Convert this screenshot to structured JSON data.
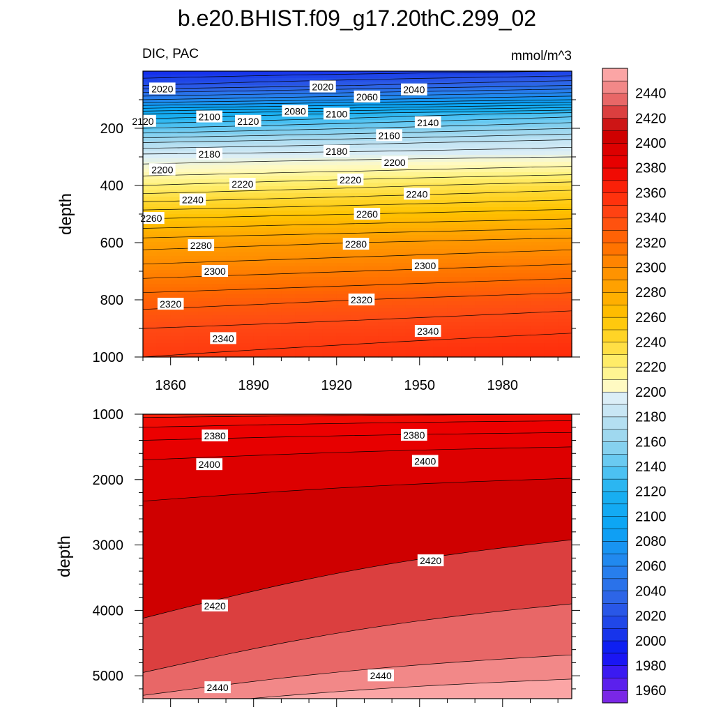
{
  "title": "b.e20.BHIST.f09_g17.20thC.299_02",
  "left_string": "DIC, PAC",
  "right_string": "mmol/m^3",
  "chart_data": [
    {
      "type": "heatmap",
      "panel": "upper",
      "title": "b.e20.BHIST.f09_g17.20thC.299_02",
      "left_string": "DIC, PAC",
      "units": "mmol/m^3",
      "xlabel": "",
      "ylabel": "depth",
      "xlim": [
        1850,
        2005
      ],
      "ylim": [
        1000,
        0
      ],
      "x_ticks": [
        1860,
        1890,
        1920,
        1950,
        1980
      ],
      "y_ticks": [
        200,
        400,
        600,
        800,
        1000
      ],
      "depth_profile": {
        "depth": [
          0,
          50,
          100,
          150,
          200,
          250,
          300,
          350,
          400,
          500,
          600,
          700,
          800,
          900,
          1000
        ],
        "dic_1850": [
          2000,
          2020,
          2060,
          2110,
          2140,
          2170,
          2195,
          2205,
          2220,
          2255,
          2285,
          2305,
          2325,
          2340,
          2350
        ],
        "dic_2005": [
          2010,
          2040,
          2080,
          2135,
          2160,
          2185,
          2200,
          2215,
          2235,
          2265,
          2295,
          2315,
          2335,
          2348,
          2360
        ]
      },
      "contour_labels": [
        {
          "value": "2020",
          "year": 1857,
          "depth": 62
        },
        {
          "value": "2020",
          "year": 1915,
          "depth": 55
        },
        {
          "value": "2060",
          "year": 1931,
          "depth": 90
        },
        {
          "value": "2040",
          "year": 1948,
          "depth": 65
        },
        {
          "value": "2120",
          "year": 1850,
          "depth": 175
        },
        {
          "value": "2100",
          "year": 1874,
          "depth": 160
        },
        {
          "value": "2120",
          "year": 1888,
          "depth": 175
        },
        {
          "value": "2080",
          "year": 1905,
          "depth": 140
        },
        {
          "value": "2100",
          "year": 1920,
          "depth": 150
        },
        {
          "value": "2140",
          "year": 1953,
          "depth": 180
        },
        {
          "value": "2160",
          "year": 1939,
          "depth": 225
        },
        {
          "value": "2180",
          "year": 1874,
          "depth": 290
        },
        {
          "value": "2180",
          "year": 1920,
          "depth": 280
        },
        {
          "value": "2200",
          "year": 1941,
          "depth": 320
        },
        {
          "value": "2200",
          "year": 1857,
          "depth": 345
        },
        {
          "value": "2220",
          "year": 1886,
          "depth": 395
        },
        {
          "value": "2220",
          "year": 1925,
          "depth": 380
        },
        {
          "value": "2240",
          "year": 1949,
          "depth": 430
        },
        {
          "value": "2240",
          "year": 1868,
          "depth": 450
        },
        {
          "value": "2260",
          "year": 1853,
          "depth": 515
        },
        {
          "value": "2260",
          "year": 1931,
          "depth": 500
        },
        {
          "value": "2280",
          "year": 1871,
          "depth": 610
        },
        {
          "value": "2280",
          "year": 1927,
          "depth": 605
        },
        {
          "value": "2300",
          "year": 1876,
          "depth": 700
        },
        {
          "value": "2300",
          "year": 1952,
          "depth": 680
        },
        {
          "value": "2320",
          "year": 1860,
          "depth": 815
        },
        {
          "value": "2320",
          "year": 1929,
          "depth": 800
        },
        {
          "value": "2340",
          "year": 1879,
          "depth": 935
        },
        {
          "value": "2340",
          "year": 1953,
          "depth": 910
        }
      ]
    },
    {
      "type": "heatmap",
      "panel": "lower",
      "xlabel": "",
      "ylabel": "depth",
      "xlim": [
        1850,
        2005
      ],
      "ylim": [
        5350,
        1000
      ],
      "y_ticks": [
        1000,
        2000,
        3000,
        4000,
        5000
      ],
      "contour_lines_depth": [
        {
          "value": 2370,
          "at_1850": 1050,
          "at_2005": 1000
        },
        {
          "value": 2375,
          "at_1850": 1200,
          "at_2005": 1100
        },
        {
          "value": 2380,
          "at_1850": 1400,
          "at_2005": 1280
        },
        {
          "value": 2390,
          "at_1850": 1700,
          "at_2005": 1500
        },
        {
          "value": 2400,
          "at_1850": 2330,
          "at_2005": 1980
        },
        {
          "value": 2420,
          "at_1850": 4120,
          "at_2005": 2920
        },
        {
          "value": 2430,
          "at_1850": 4950,
          "at_2005": 3900
        },
        {
          "value": 2440,
          "at_1850": 5300,
          "at_2005": 4680
        },
        {
          "value": 2450,
          "at_1850": 5500,
          "at_2005": 5050
        }
      ],
      "contour_labels": [
        {
          "value": "2380",
          "year": 1876,
          "depth": 1330
        },
        {
          "value": "2380",
          "year": 1948,
          "depth": 1320
        },
        {
          "value": "2400",
          "year": 1874,
          "depth": 1770
        },
        {
          "value": "2400",
          "year": 1952,
          "depth": 1720
        },
        {
          "value": "2420",
          "year": 1954,
          "depth": 3240
        },
        {
          "value": "2420",
          "year": 1876,
          "depth": 3930
        },
        {
          "value": "2440",
          "year": 1877,
          "depth": 5180
        },
        {
          "value": "2440",
          "year": 1936,
          "depth": 5000
        }
      ]
    }
  ],
  "colorbar": {
    "labels": [
      "1960",
      "1980",
      "2000",
      "2020",
      "2040",
      "2060",
      "2080",
      "2100",
      "2120",
      "2140",
      "2160",
      "2180",
      "2200",
      "2220",
      "2240",
      "2260",
      "2280",
      "2300",
      "2320",
      "2340",
      "2360",
      "2380",
      "2400",
      "2420",
      "2440"
    ],
    "levels": [
      1950,
      1960,
      1970,
      1980,
      1990,
      2000,
      2010,
      2020,
      2030,
      2040,
      2050,
      2060,
      2070,
      2080,
      2090,
      2100,
      2110,
      2120,
      2130,
      2140,
      2150,
      2160,
      2170,
      2180,
      2190,
      2200,
      2210,
      2220,
      2230,
      2240,
      2250,
      2260,
      2270,
      2280,
      2290,
      2300,
      2310,
      2320,
      2330,
      2340,
      2350,
      2360,
      2370,
      2380,
      2390,
      2400,
      2410,
      2420,
      2430,
      2440,
      2450,
      2460
    ]
  },
  "colors": {
    "deep_purple": "#8a2be2",
    "deep_blue": "#0a1ff0",
    "blue": "#1f6ff0",
    "cyan": "#29b6f6",
    "light_blue": "#cfe8f5",
    "pale_yellow": "#fff7b0",
    "yellow": "#ffd21a",
    "orange": "#ff8c00",
    "red_orange": "#ff4a10",
    "red": "#e00000",
    "dark_red": "#c30000",
    "pink": "#ffb3b3"
  }
}
